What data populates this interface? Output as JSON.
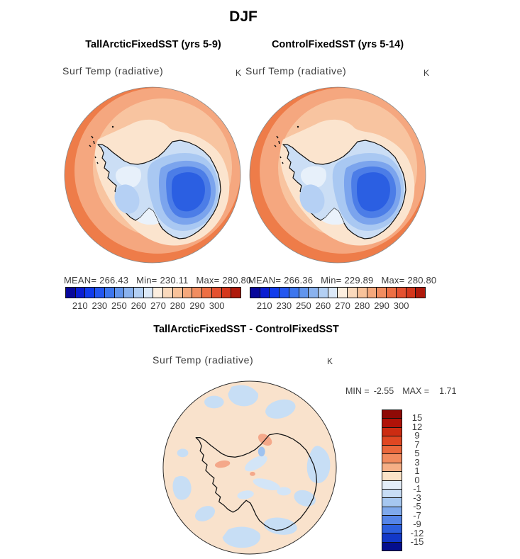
{
  "page": {
    "title": "DJF"
  },
  "panels": [
    {
      "title": "TallArcticFixedSST (yrs 5-9)",
      "field_label": "Surf Temp (radiative)",
      "unit": "K",
      "stats": {
        "mean_label": "MEAN=",
        "mean": "266.43",
        "min_label": "Min=",
        "min": "230.11",
        "max_label": "Max=",
        "max": "280.80"
      }
    },
    {
      "title": "ControlFixedSST (yrs 5-14)",
      "field_label": "Surf Temp (radiative)",
      "unit": "K",
      "stats": {
        "mean_label": "MEAN=",
        "mean": "266.36",
        "min_label": "Min=",
        "min": "229.89",
        "max_label": "Max=",
        "max": "280.80"
      }
    }
  ],
  "temp_colorbar": {
    "colors": [
      "#08089B",
      "#0A1ED2",
      "#113CEC",
      "#2457F0",
      "#3D76EE",
      "#6295EC",
      "#8AB2EE",
      "#B3CFF3",
      "#DCE9F8",
      "#FCEEDF",
      "#FAD9BC",
      "#F8C29A",
      "#F5A87C",
      "#F18D60",
      "#ED6F44",
      "#E45130",
      "#D4371C",
      "#AF1A0C"
    ],
    "ticks": [
      "210",
      "230",
      "250",
      "260",
      "270",
      "280",
      "290",
      "300"
    ]
  },
  "diff": {
    "title": "TallArcticFixedSST - ControlFixedSST",
    "field_label": "Surf Temp (radiative)",
    "unit": "K",
    "min_label": "MIN =",
    "min": "-2.55",
    "max_label": "MAX =",
    "max": "1.71",
    "colorbar": {
      "colors": [
        "#8F0A06",
        "#B01208",
        "#CC2C12",
        "#E04722",
        "#EB683C",
        "#F28B5E",
        "#F6AF86",
        "#FBE3C8",
        "#E4EEF9",
        "#C8DDF5",
        "#A6C7F0",
        "#7FA9EC",
        "#5585E8",
        "#2C5FDE",
        "#1238C8",
        "#050E8E"
      ],
      "ticks": [
        "15",
        "12",
        "9",
        "7",
        "5",
        "3",
        "1",
        "0",
        "-1",
        "-3",
        "-5",
        "-7",
        "-9",
        "-12",
        "-15"
      ]
    }
  },
  "chart_data": [
    {
      "type": "heatmap",
      "title": "TallArcticFixedSST (yrs 5-9)",
      "subtitle": "DJF",
      "variable": "Surf Temp (radiative)",
      "units": "K",
      "region": "Antarctica / South polar view",
      "stats": {
        "mean": 266.43,
        "min": 230.11,
        "max": 280.8
      },
      "colorbar_tick_values": [
        210,
        230,
        250,
        260,
        270,
        280,
        290,
        300
      ],
      "colorbar_orientation": "horizontal",
      "palette": "blue-to-red"
    },
    {
      "type": "heatmap",
      "title": "ControlFixedSST (yrs 5-14)",
      "subtitle": "DJF",
      "variable": "Surf Temp (radiative)",
      "units": "K",
      "region": "Antarctica / South polar view",
      "stats": {
        "mean": 266.36,
        "min": 229.89,
        "max": 280.8
      },
      "colorbar_tick_values": [
        210,
        230,
        250,
        260,
        270,
        280,
        290,
        300
      ],
      "colorbar_orientation": "horizontal",
      "palette": "blue-to-red"
    },
    {
      "type": "heatmap",
      "title": "TallArcticFixedSST - ControlFixedSST",
      "variable": "Surf Temp (radiative)",
      "units": "K",
      "region": "Antarctica / South polar view",
      "stats": {
        "min": -2.55,
        "max": 1.71
      },
      "colorbar_tick_values": [
        15,
        12,
        9,
        7,
        5,
        3,
        1,
        0,
        -1,
        -3,
        -5,
        -7,
        -9,
        -12,
        -15
      ],
      "colorbar_orientation": "vertical",
      "palette": "red-to-blue (diverging)"
    }
  ]
}
